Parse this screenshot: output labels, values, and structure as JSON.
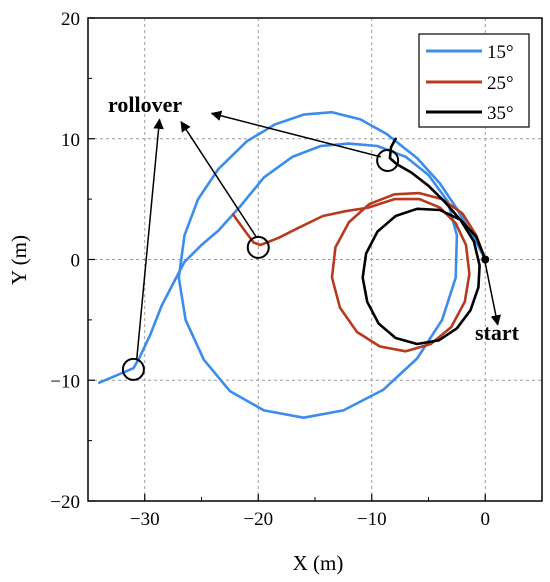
{
  "chart_data": {
    "type": "line",
    "xlabel": "X (m)",
    "ylabel": "Y (m)",
    "xlim": [
      -35,
      5
    ],
    "ylim": [
      -20,
      20
    ],
    "xticks": [
      -30,
      -20,
      -10,
      0
    ],
    "yticks": [
      -20,
      -10,
      0,
      10,
      20
    ],
    "xtick_labels": [
      "−30",
      "−20",
      "−10",
      "0"
    ],
    "ytick_labels": [
      "−20",
      "−10",
      "0",
      "10",
      "20"
    ],
    "grid": true,
    "legend_position": "top-right",
    "series": [
      {
        "name": "15°",
        "color": "#3b8ced",
        "points": [
          [
            0,
            0
          ],
          [
            -1,
            1.8
          ],
          [
            -2.5,
            4.2
          ],
          [
            -4,
            6.3
          ],
          [
            -6,
            8.4
          ],
          [
            -8.7,
            10.4
          ],
          [
            -11,
            11.6
          ],
          [
            -13.5,
            12.2
          ],
          [
            -16,
            12.0
          ],
          [
            -18.5,
            11.2
          ],
          [
            -21,
            9.8
          ],
          [
            -23.5,
            7.5
          ],
          [
            -25.3,
            5.0
          ],
          [
            -26.5,
            2.0
          ],
          [
            -27,
            -1.5
          ],
          [
            -26.4,
            -5.0
          ],
          [
            -24.8,
            -8.3
          ],
          [
            -22.5,
            -10.9
          ],
          [
            -19.5,
            -12.5
          ],
          [
            -16,
            -13.1
          ],
          [
            -12.5,
            -12.5
          ],
          [
            -9,
            -10.8
          ],
          [
            -6,
            -8.2
          ],
          [
            -3.8,
            -5.0
          ],
          [
            -2.6,
            -1.5
          ],
          [
            -2.5,
            2.0
          ],
          [
            -3.3,
            4.8
          ],
          [
            -5,
            7.0
          ],
          [
            -7,
            8.5
          ],
          [
            -9.5,
            9.4
          ],
          [
            -12,
            9.6
          ],
          [
            -14.5,
            9.4
          ],
          [
            -17,
            8.5
          ],
          [
            -19.5,
            6.8
          ],
          [
            -21.5,
            4.5
          ],
          [
            -23.5,
            2.4
          ],
          [
            -25,
            1.2
          ],
          [
            -26.5,
            -0.2
          ],
          [
            -27.5,
            -2.0
          ],
          [
            -28.5,
            -3.8
          ],
          [
            -29.5,
            -6.2
          ],
          [
            -30.5,
            -8.2
          ],
          [
            -31,
            -9.0
          ],
          [
            -32.5,
            -9.6
          ],
          [
            -34,
            -10.2
          ]
        ]
      },
      {
        "name": "25°",
        "color": "#b83a1e",
        "points": [
          [
            0,
            0
          ],
          [
            -0.8,
            2.0
          ],
          [
            -2.0,
            3.8
          ],
          [
            -3.8,
            5.0
          ],
          [
            -5.8,
            5.5
          ],
          [
            -8.0,
            5.4
          ],
          [
            -10.2,
            4.6
          ],
          [
            -12.0,
            3.1
          ],
          [
            -13.2,
            1.0
          ],
          [
            -13.5,
            -1.5
          ],
          [
            -12.8,
            -4.0
          ],
          [
            -11.3,
            -6.0
          ],
          [
            -9.3,
            -7.2
          ],
          [
            -7.0,
            -7.6
          ],
          [
            -4.8,
            -7.0
          ],
          [
            -3.0,
            -5.6
          ],
          [
            -1.8,
            -3.5
          ],
          [
            -1.4,
            -1.2
          ],
          [
            -1.7,
            1.2
          ],
          [
            -2.6,
            3.0
          ],
          [
            -4.0,
            4.3
          ],
          [
            -5.8,
            5.0
          ],
          [
            -8.0,
            5.0
          ],
          [
            -10.3,
            4.3
          ],
          [
            -12.3,
            4.0
          ],
          [
            -14.3,
            3.6
          ],
          [
            -16.5,
            2.6
          ],
          [
            -18.2,
            1.8
          ],
          [
            -19.8,
            1.2
          ],
          [
            -20.4,
            1.4
          ],
          [
            -21.2,
            2.4
          ],
          [
            -22.2,
            3.7
          ]
        ]
      },
      {
        "name": "35°",
        "color": "#000000",
        "points": [
          [
            0,
            0
          ],
          [
            -0.8,
            1.9
          ],
          [
            -2.2,
            3.3
          ],
          [
            -4.0,
            4.1
          ],
          [
            -6.0,
            4.2
          ],
          [
            -7.9,
            3.6
          ],
          [
            -9.5,
            2.3
          ],
          [
            -10.5,
            0.5
          ],
          [
            -10.8,
            -1.5
          ],
          [
            -10.4,
            -3.5
          ],
          [
            -9.4,
            -5.3
          ],
          [
            -7.9,
            -6.5
          ],
          [
            -6.0,
            -7.0
          ],
          [
            -4.1,
            -6.7
          ],
          [
            -2.5,
            -5.7
          ],
          [
            -1.3,
            -4.2
          ],
          [
            -0.6,
            -2.3
          ],
          [
            -0.5,
            -0.5
          ],
          [
            -1.0,
            1.5
          ],
          [
            -2.2,
            3.3
          ],
          [
            -3.6,
            4.8
          ],
          [
            -5.0,
            6.1
          ],
          [
            -6.5,
            7.2
          ],
          [
            -7.8,
            7.9
          ],
          [
            -8.4,
            8.4
          ],
          [
            -8.3,
            9.3
          ],
          [
            -7.9,
            10.0
          ]
        ]
      }
    ],
    "annotations": {
      "rollover_label": "rollover",
      "start_label": "start"
    }
  }
}
